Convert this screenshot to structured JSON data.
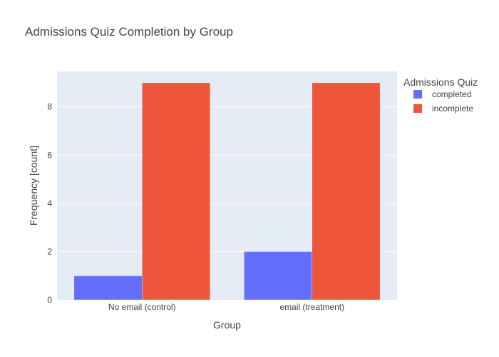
{
  "chart_data": {
    "type": "bar",
    "title": "Admissions Quiz Completion by Group",
    "xlabel": "Group",
    "ylabel": "Frequency [count]",
    "categories": [
      "No email (control)",
      "email (treatment)"
    ],
    "series": [
      {
        "name": "completed",
        "values": [
          1,
          2
        ],
        "color": "#636efa"
      },
      {
        "name": "incomplete",
        "values": [
          9,
          9
        ],
        "color": "#ef553b"
      }
    ],
    "ylim": [
      0,
      9.47
    ],
    "yticks": [
      0,
      2,
      4,
      6,
      8
    ],
    "grid": true,
    "legend": {
      "title": "Admissions Quiz",
      "position": "top-right"
    },
    "plot_background": "#e5ecf6"
  }
}
